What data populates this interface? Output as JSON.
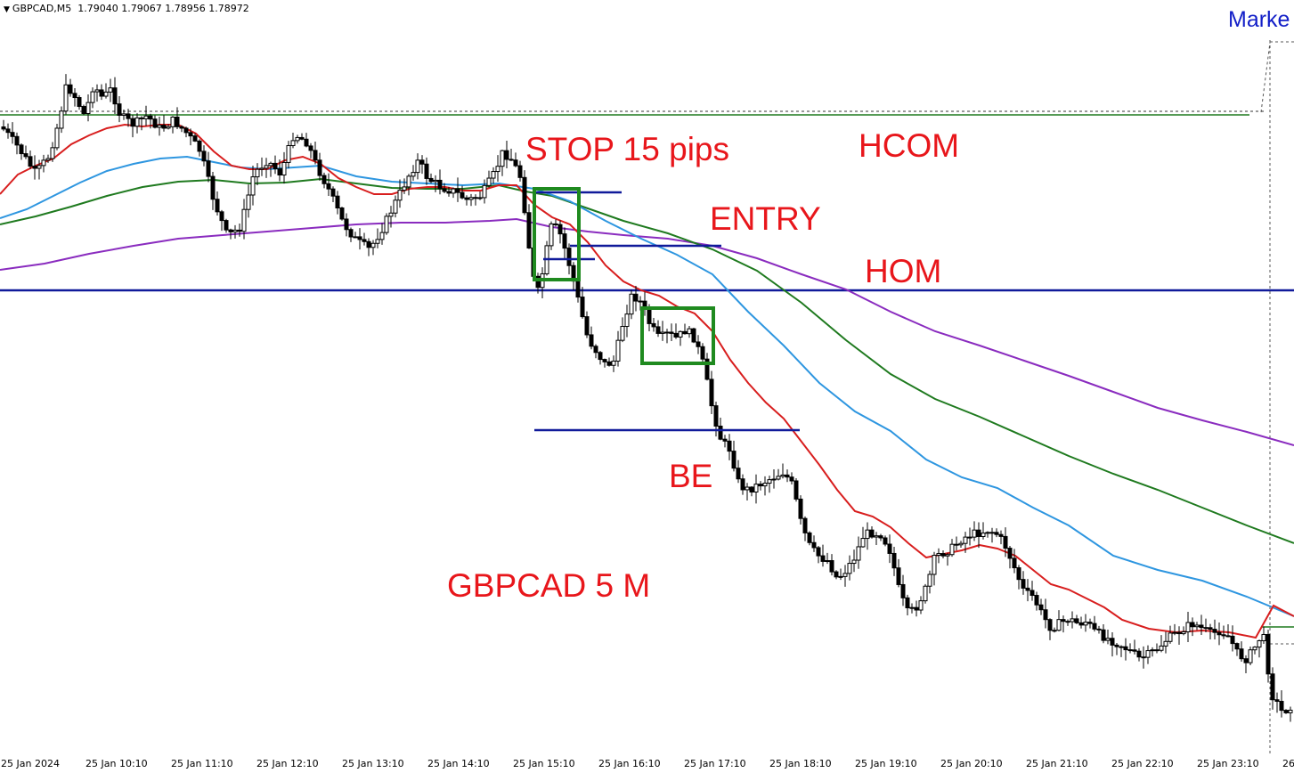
{
  "header": {
    "symbol": "GBPCAD,M5",
    "open": "1.79040",
    "high": "1.79067",
    "low": "1.78956",
    "close": "1.78972"
  },
  "market_label": "Marke",
  "annotations": {
    "stop": "STOP 15 pips",
    "hcom": "HCOM",
    "entry": "ENTRY",
    "hom": "HOM",
    "be": "BE",
    "pair": "GBPCAD 5 M"
  },
  "x_axis_labels": [
    "25 Jan 2024",
    "25 Jan 10:10",
    "25 Jan 11:10",
    "25 Jan 12:10",
    "25 Jan 13:10",
    "25 Jan 14:10",
    "25 Jan 15:10",
    "25 Jan 16:10",
    "25 Jan 17:10",
    "25 Jan 18:10",
    "25 Jan 19:10",
    "25 Jan 20:10",
    "25 Jan 21:10",
    "25 Jan 22:10",
    "25 Jan 23:10",
    "26"
  ],
  "colors": {
    "ema_fast": "#d81e1e",
    "ema_mid": "#2e96e0",
    "ema_slow": "#1f7a1f",
    "ema_long": "#8a2cbf",
    "level_line": "#101a9a",
    "box": "#1f8a1f",
    "annotation": "#e8161b",
    "market": "#1420c8"
  }
}
